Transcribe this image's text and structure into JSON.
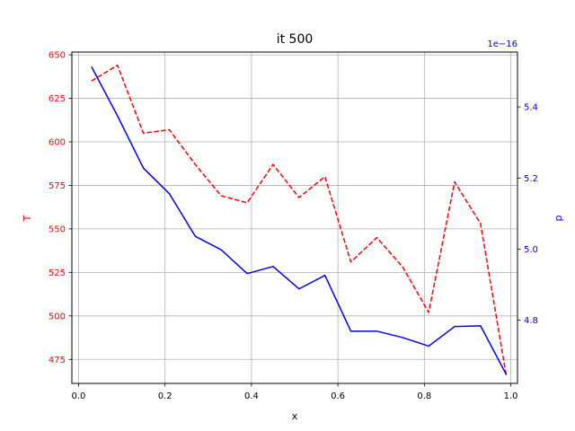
{
  "chart_data": {
    "type": "line",
    "title": "it 500",
    "xlabel": "x",
    "xlim": [
      -0.0155,
      1.0155
    ],
    "x_ticks": [
      "0.0",
      "0.2",
      "0.4",
      "0.6",
      "0.8",
      "1.0"
    ],
    "x_tick_values": [
      0.0,
      0.2,
      0.4,
      0.6,
      0.8,
      1.0
    ],
    "grid": true,
    "left_axis": {
      "label": "T",
      "color": "#ff0000",
      "ylim": [
        461.2,
        651.6
      ],
      "ticks": [
        "475",
        "500",
        "525",
        "550",
        "575",
        "600",
        "625",
        "650"
      ],
      "tick_values": [
        475,
        500,
        525,
        550,
        575,
        600,
        625,
        650
      ]
    },
    "right_axis": {
      "label": "p",
      "color": "#0000ff",
      "offset_text": "1e−16",
      "ylim": [
        4.622,
        5.5544
      ],
      "ticks": [
        "4.8",
        "5.0",
        "5.2",
        "5.4"
      ],
      "tick_values": [
        4.8,
        5.0,
        5.2,
        5.4
      ]
    },
    "series": [
      {
        "axis": "left",
        "color": "#ff0000",
        "style": "dashed",
        "x": [
          0.03,
          0.09,
          0.15,
          0.21,
          0.27,
          0.33,
          0.39,
          0.45,
          0.51,
          0.57,
          0.63,
          0.69,
          0.75,
          0.81,
          0.87,
          0.93,
          0.99
        ],
        "values": [
          635,
          644,
          605,
          607,
          587,
          569,
          565,
          587,
          568,
          580,
          531,
          545,
          528,
          502,
          577,
          553,
          465
        ]
      },
      {
        "axis": "right",
        "color": "#0000ff",
        "style": "solid",
        "x": [
          0.03,
          0.09,
          0.15,
          0.21,
          0.27,
          0.33,
          0.39,
          0.45,
          0.51,
          0.57,
          0.63,
          0.69,
          0.75,
          0.81,
          0.87,
          0.93,
          0.99
        ],
        "values": [
          5.513,
          5.375,
          5.228,
          5.156,
          5.036,
          4.998,
          4.931,
          4.951,
          4.888,
          4.926,
          4.769,
          4.769,
          4.751,
          4.727,
          4.782,
          4.784,
          4.646
        ]
      }
    ]
  }
}
